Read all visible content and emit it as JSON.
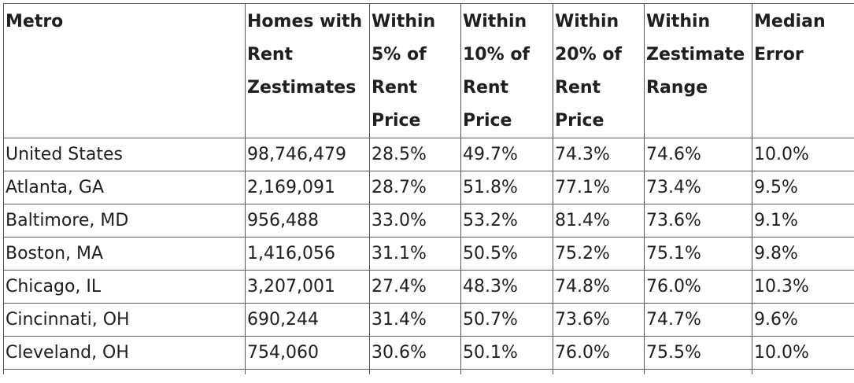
{
  "table": {
    "headers": [
      [
        "Metro"
      ],
      [
        "Homes with",
        "Rent",
        "Zestimates"
      ],
      [
        "Within",
        "5% of",
        "Rent",
        "Price"
      ],
      [
        "Within",
        "10% of",
        "Rent",
        "Price"
      ],
      [
        "Within",
        "20% of",
        "Rent",
        "Price"
      ],
      [
        "Within",
        "Zestimate",
        "Range"
      ],
      [
        "Median",
        "Error"
      ]
    ],
    "rows": [
      [
        "United States",
        "98,746,479",
        "28.5%",
        "49.7%",
        "74.3%",
        "74.6%",
        "10.0%"
      ],
      [
        "Atlanta, GA",
        "2,169,091",
        "28.7%",
        "51.8%",
        "77.1%",
        "73.4%",
        "9.5%"
      ],
      [
        "Baltimore, MD",
        "956,488",
        "33.0%",
        "53.2%",
        "81.4%",
        "73.6%",
        "9.1%"
      ],
      [
        "Boston, MA",
        "1,416,056",
        "31.1%",
        "50.5%",
        "75.2%",
        "75.1%",
        "9.8%"
      ],
      [
        "Chicago, IL",
        "3,207,001",
        "27.4%",
        "48.3%",
        "74.8%",
        "76.0%",
        "10.3%"
      ],
      [
        "Cincinnati, OH",
        "690,244",
        "31.4%",
        "50.7%",
        "73.6%",
        "74.7%",
        "9.6%"
      ],
      [
        "Cleveland, OH",
        "754,060",
        "30.6%",
        "50.1%",
        "76.0%",
        "75.5%",
        "10.0%"
      ]
    ]
  }
}
